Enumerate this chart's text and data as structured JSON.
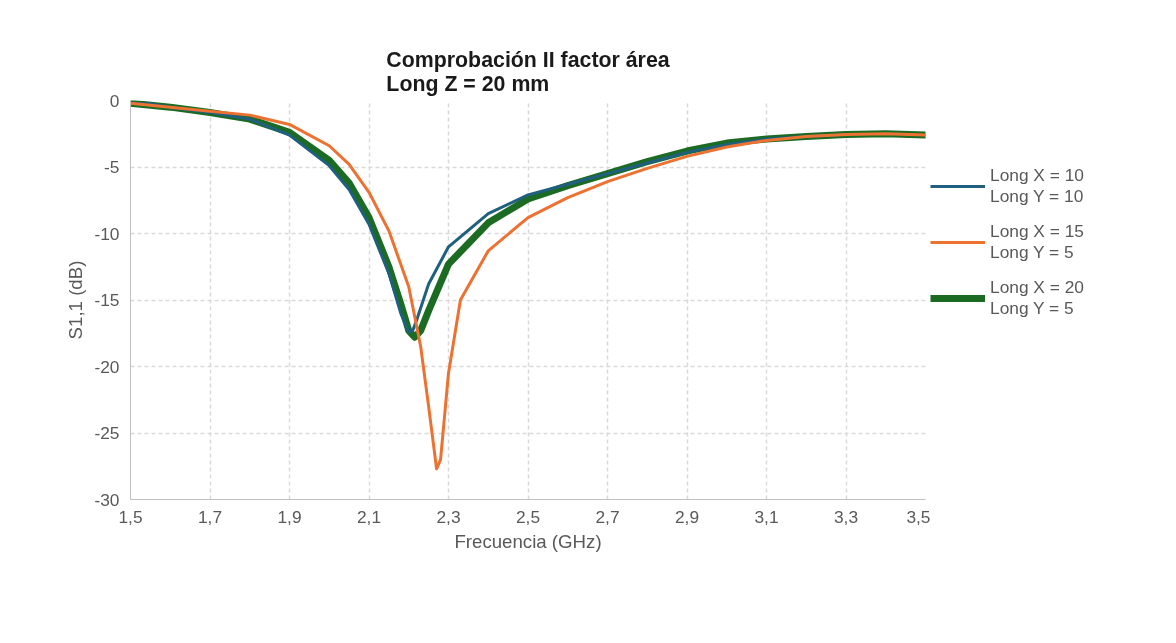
{
  "chart_data": {
    "type": "line",
    "title": "Comprobación II factor área\nLong Z = 20 mm",
    "xlabel": "Frecuencia (GHz)",
    "ylabel": "S1,1 (dB)",
    "xlim": [
      1.5,
      3.5
    ],
    "ylim": [
      -30,
      0
    ],
    "xticks": [
      {
        "value": 1.5,
        "label": "1,5"
      },
      {
        "value": 1.7,
        "label": "1,7"
      },
      {
        "value": 1.9,
        "label": "1,9"
      },
      {
        "value": 2.1,
        "label": "2,1"
      },
      {
        "value": 2.3,
        "label": "2,3"
      },
      {
        "value": 2.5,
        "label": "2,5"
      },
      {
        "value": 2.7,
        "label": "2,7"
      },
      {
        "value": 2.9,
        "label": "2,9"
      },
      {
        "value": 3.1,
        "label": "3,1"
      },
      {
        "value": 3.3,
        "label": "3,3"
      },
      {
        "value": 3.5,
        "label": "3,5"
      }
    ],
    "yticks": [
      {
        "value": -30,
        "label": "-30"
      },
      {
        "value": -25,
        "label": "-25"
      },
      {
        "value": -20,
        "label": "-20"
      },
      {
        "value": -15,
        "label": "-15"
      },
      {
        "value": -10,
        "label": "-10"
      },
      {
        "value": -5,
        "label": "-5"
      },
      {
        "value": 0,
        "label": "0"
      }
    ],
    "grid": true,
    "legend": "right",
    "line_style": "solid",
    "marker": "none",
    "series": [
      {
        "name": "Long X = 10\nLong Y = 10",
        "color": "#1f5f7f",
        "x": [
          1.5,
          1.55,
          1.6,
          1.7,
          1.8,
          1.9,
          2.0,
          2.05,
          2.1,
          2.15,
          2.18,
          2.2,
          2.21,
          2.22,
          2.25,
          2.3,
          2.4,
          2.5,
          2.6,
          2.7,
          2.8,
          2.9,
          3.0,
          3.1,
          3.2,
          3.3
        ],
        "values": [
          -0.2,
          -0.25,
          -0.5,
          -0.9,
          -1.4,
          -2.6,
          -4.9,
          -6.7,
          -9.3,
          -13.0,
          -16.0,
          -17.4,
          -17.3,
          -16.5,
          -13.8,
          -11.0,
          -8.5,
          -7.1,
          -6.3,
          -5.5,
          -4.7,
          -3.9,
          -3.3,
          -2.9,
          -2.7,
          -2.55
        ]
      },
      {
        "name": "Long X = 15\nLong Y = 5",
        "color": "#ed7232",
        "x": [
          1.5,
          1.6,
          1.7,
          1.8,
          1.9,
          2.0,
          2.05,
          2.1,
          2.15,
          2.2,
          2.23,
          2.25,
          2.27,
          2.28,
          2.3,
          2.33,
          2.4,
          2.5,
          2.6,
          2.7,
          2.8,
          2.9,
          3.0,
          3.1,
          3.2,
          3.3,
          3.4,
          3.5
        ],
        "values": [
          -0.2,
          -0.5,
          -0.8,
          -1.1,
          -1.8,
          -3.4,
          -4.8,
          -6.9,
          -9.8,
          -14.0,
          -18.5,
          -23.0,
          -27.7,
          -27.0,
          -20.5,
          -15.0,
          -11.3,
          -8.8,
          -7.3,
          -6.1,
          -5.1,
          -4.2,
          -3.5,
          -3.0,
          -2.7,
          -2.55,
          -2.5,
          -2.6
        ]
      },
      {
        "name": "Long X = 20\nLong Y = 5",
        "color": "#1b6b23",
        "x": [
          1.5,
          1.6,
          1.7,
          1.8,
          1.9,
          2.0,
          2.05,
          2.1,
          2.15,
          2.18,
          2.2,
          2.215,
          2.23,
          2.25,
          2.3,
          2.4,
          2.5,
          2.6,
          2.7,
          2.8,
          2.9,
          3.0,
          3.1,
          3.2,
          3.3,
          3.4,
          3.5
        ],
        "values": [
          -0.2,
          -0.5,
          -0.9,
          -1.4,
          -2.4,
          -4.5,
          -6.2,
          -8.8,
          -12.5,
          -15.3,
          -17.3,
          -17.8,
          -17.3,
          -15.8,
          -12.3,
          -9.2,
          -7.4,
          -6.4,
          -5.5,
          -4.6,
          -3.8,
          -3.2,
          -2.9,
          -2.7,
          -2.55,
          -2.5,
          -2.6
        ]
      }
    ]
  }
}
